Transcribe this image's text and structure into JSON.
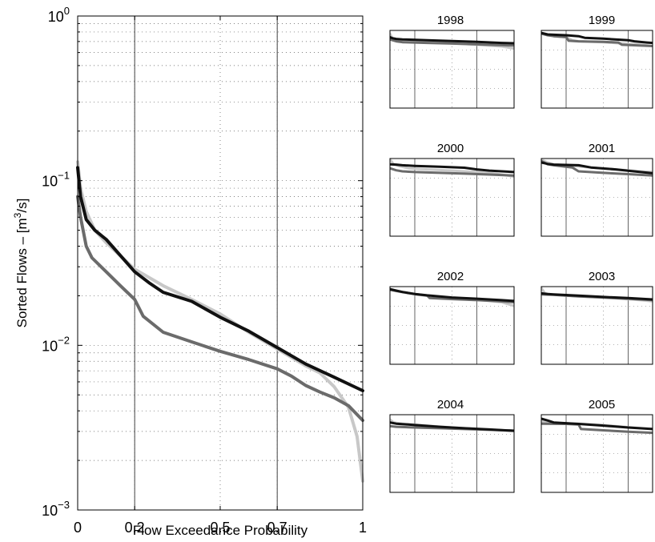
{
  "chart_data": [
    {
      "type": "line",
      "panel": "main",
      "title": "",
      "xlabel": "Flow Exceedance Probability",
      "ylabel_parts": [
        "Sorted Flows – [m",
        "3",
        "/s]"
      ],
      "xlim": [
        0,
        1
      ],
      "ylim": [
        0.001,
        1
      ],
      "yscale": "log",
      "x_ticks": [
        0,
        0.2,
        0.5,
        0.7,
        1
      ],
      "x_tick_labels": [
        "0",
        "0.2",
        "0.5",
        "0.7",
        "1"
      ],
      "y_ticks": [
        0.001,
        0.01,
        0.1,
        1
      ],
      "y_tick_labels": [
        {
          "base": "10",
          "exp": "−3"
        },
        {
          "base": "10",
          "exp": "−2"
        },
        {
          "base": "10",
          "exp": "−1"
        },
        {
          "base": "10",
          "exp": "0"
        }
      ],
      "grid": "dotted",
      "emphasized_x_lines": [
        0.2,
        0.7
      ],
      "series": [
        {
          "color": "#c8c8c8",
          "x": [
            0,
            0.01,
            0.03,
            0.06,
            0.1,
            0.2,
            0.3,
            0.4,
            0.5,
            0.6,
            0.7,
            0.8,
            0.85,
            0.9,
            0.95,
            0.98,
            1.0
          ],
          "y": [
            0.13,
            0.09,
            0.065,
            0.05,
            0.042,
            0.029,
            0.023,
            0.019,
            0.0155,
            0.012,
            0.0095,
            0.0075,
            0.0068,
            0.0056,
            0.0042,
            0.0028,
            0.0015
          ]
        },
        {
          "color": "#6b6b6b",
          "x": [
            0,
            0.01,
            0.03,
            0.05,
            0.1,
            0.15,
            0.2,
            0.23,
            0.3,
            0.4,
            0.5,
            0.6,
            0.7,
            0.75,
            0.8,
            0.85,
            0.9,
            0.95,
            1.0
          ],
          "y": [
            0.08,
            0.06,
            0.04,
            0.034,
            0.028,
            0.023,
            0.019,
            0.015,
            0.012,
            0.0105,
            0.0092,
            0.0082,
            0.0072,
            0.0065,
            0.0057,
            0.0052,
            0.0048,
            0.0043,
            0.0035
          ]
        },
        {
          "color": "#111111",
          "x": [
            0,
            0.01,
            0.03,
            0.06,
            0.1,
            0.2,
            0.25,
            0.3,
            0.4,
            0.5,
            0.6,
            0.7,
            0.8,
            0.9,
            1.0
          ],
          "y": [
            0.12,
            0.08,
            0.058,
            0.05,
            0.044,
            0.028,
            0.024,
            0.021,
            0.0185,
            0.0148,
            0.0122,
            0.0097,
            0.0077,
            0.0064,
            0.0053
          ]
        }
      ]
    },
    {
      "type": "line",
      "panel": "small",
      "title": "1998",
      "xlim": [
        0,
        1
      ],
      "yscale": "log",
      "ylim": [
        0.001,
        1
      ],
      "series": [
        {
          "color": "#c8c8c8",
          "x": [
            0,
            0.02,
            0.05,
            0.1,
            0.3,
            0.5,
            0.7,
            0.9,
            1.0
          ],
          "y": [
            0.75,
            0.5,
            0.45,
            0.4,
            0.36,
            0.32,
            0.28,
            0.24,
            0.2
          ]
        },
        {
          "color": "#6b6b6b",
          "x": [
            0,
            0.02,
            0.05,
            0.1,
            0.3,
            0.5,
            0.7,
            0.9,
            1.0
          ],
          "y": [
            0.45,
            0.42,
            0.38,
            0.35,
            0.33,
            0.31,
            0.29,
            0.27,
            0.26
          ]
        },
        {
          "color": "#111111",
          "x": [
            0,
            0.02,
            0.05,
            0.1,
            0.3,
            0.5,
            0.7,
            0.9,
            1.0
          ],
          "y": [
            0.55,
            0.5,
            0.47,
            0.45,
            0.42,
            0.39,
            0.36,
            0.33,
            0.32
          ]
        }
      ]
    },
    {
      "type": "line",
      "panel": "small",
      "title": "1999",
      "xlim": [
        0,
        1
      ],
      "yscale": "log",
      "ylim": [
        0.001,
        1
      ],
      "series": [
        {
          "color": "#c8c8c8",
          "x": [
            0,
            0.05,
            0.1,
            0.2,
            0.25,
            0.3,
            0.5,
            0.7,
            0.8,
            0.9,
            1.0
          ],
          "y": [
            0.8,
            0.7,
            0.6,
            0.55,
            0.42,
            0.38,
            0.35,
            0.3,
            0.28,
            0.25,
            0.18
          ]
        },
        {
          "color": "#6b6b6b",
          "x": [
            0,
            0.05,
            0.1,
            0.2,
            0.22,
            0.3,
            0.5,
            0.62,
            0.65,
            0.8,
            0.9,
            1.0
          ],
          "y": [
            0.75,
            0.65,
            0.6,
            0.55,
            0.4,
            0.38,
            0.36,
            0.34,
            0.28,
            0.26,
            0.25,
            0.24
          ]
        },
        {
          "color": "#111111",
          "x": [
            0,
            0.05,
            0.1,
            0.2,
            0.3,
            0.35,
            0.5,
            0.7,
            0.75,
            0.85,
            1.0
          ],
          "y": [
            0.8,
            0.7,
            0.68,
            0.65,
            0.6,
            0.52,
            0.48,
            0.42,
            0.38,
            0.34,
            0.3
          ]
        }
      ]
    },
    {
      "type": "line",
      "panel": "small",
      "title": "2000",
      "xlim": [
        0,
        1
      ],
      "yscale": "log",
      "ylim": [
        0.001,
        1
      ],
      "series": [
        {
          "color": "#c8c8c8",
          "x": [
            0,
            0.03,
            0.08,
            0.15,
            0.3,
            0.5,
            0.7,
            0.85,
            1.0
          ],
          "y": [
            0.95,
            0.6,
            0.5,
            0.42,
            0.38,
            0.34,
            0.3,
            0.26,
            0.2
          ]
        },
        {
          "color": "#6b6b6b",
          "x": [
            0,
            0.05,
            0.1,
            0.2,
            0.4,
            0.6,
            0.8,
            1.0
          ],
          "y": [
            0.42,
            0.35,
            0.32,
            0.3,
            0.28,
            0.26,
            0.24,
            0.22
          ]
        },
        {
          "color": "#111111",
          "x": [
            0,
            0.05,
            0.1,
            0.2,
            0.4,
            0.6,
            0.7,
            0.8,
            1.0
          ],
          "y": [
            0.6,
            0.58,
            0.55,
            0.52,
            0.48,
            0.44,
            0.38,
            0.34,
            0.3
          ]
        }
      ]
    },
    {
      "type": "line",
      "panel": "small",
      "title": "2001",
      "xlim": [
        0,
        1
      ],
      "yscale": "log",
      "ylim": [
        0.001,
        1
      ],
      "series": [
        {
          "color": "#c8c8c8",
          "x": [
            0,
            0.05,
            0.1,
            0.2,
            0.4,
            0.6,
            0.8,
            0.9,
            1.0
          ],
          "y": [
            0.9,
            0.7,
            0.6,
            0.55,
            0.45,
            0.38,
            0.32,
            0.3,
            0.26
          ]
        },
        {
          "color": "#6b6b6b",
          "x": [
            0,
            0.05,
            0.1,
            0.25,
            0.3,
            0.5,
            0.7,
            0.9,
            1.0
          ],
          "y": [
            0.8,
            0.6,
            0.55,
            0.45,
            0.32,
            0.28,
            0.25,
            0.22,
            0.2
          ]
        },
        {
          "color": "#111111",
          "x": [
            0,
            0.05,
            0.1,
            0.3,
            0.4,
            0.6,
            0.8,
            0.9,
            1.0
          ],
          "y": [
            0.7,
            0.62,
            0.58,
            0.55,
            0.45,
            0.38,
            0.3,
            0.27,
            0.24
          ]
        }
      ]
    },
    {
      "type": "line",
      "panel": "small",
      "title": "2002",
      "xlim": [
        0,
        1
      ],
      "yscale": "log",
      "ylim": [
        0.001,
        1
      ],
      "series": [
        {
          "color": "#c8c8c8",
          "x": [
            0,
            0.1,
            0.2,
            0.4,
            0.6,
            0.8,
            0.9,
            1.0
          ],
          "y": [
            0.75,
            0.6,
            0.5,
            0.4,
            0.34,
            0.28,
            0.25,
            0.18
          ]
        },
        {
          "color": "#6b6b6b",
          "x": [
            0,
            0.1,
            0.2,
            0.3,
            0.32,
            0.5,
            0.7,
            0.9,
            1.0
          ],
          "y": [
            0.75,
            0.62,
            0.52,
            0.45,
            0.36,
            0.33,
            0.3,
            0.27,
            0.25
          ]
        },
        {
          "color": "#111111",
          "x": [
            0,
            0.05,
            0.1,
            0.2,
            0.3,
            0.5,
            0.7,
            0.9,
            1.0
          ],
          "y": [
            0.8,
            0.7,
            0.62,
            0.52,
            0.46,
            0.38,
            0.34,
            0.3,
            0.28
          ]
        }
      ]
    },
    {
      "type": "line",
      "panel": "small",
      "title": "2003",
      "xlim": [
        0,
        1
      ],
      "yscale": "log",
      "ylim": [
        0.001,
        1
      ],
      "series": [
        {
          "color": "#c8c8c8",
          "x": [
            0,
            0.03,
            0.08,
            0.2,
            0.4,
            0.6,
            0.8,
            0.9,
            1.0
          ],
          "y": [
            0.9,
            0.55,
            0.5,
            0.45,
            0.4,
            0.35,
            0.3,
            0.27,
            0.22
          ]
        },
        {
          "color": "#6b6b6b",
          "x": [
            0,
            0.1,
            0.3,
            0.5,
            0.7,
            0.9,
            1.0
          ],
          "y": [
            0.5,
            0.48,
            0.42,
            0.38,
            0.34,
            0.3,
            0.28
          ]
        },
        {
          "color": "#111111",
          "x": [
            0,
            0.05,
            0.1,
            0.3,
            0.5,
            0.7,
            0.9,
            1.0
          ],
          "y": [
            0.55,
            0.52,
            0.5,
            0.45,
            0.4,
            0.36,
            0.32,
            0.3
          ]
        }
      ]
    },
    {
      "type": "line",
      "panel": "small",
      "title": "2004",
      "xlim": [
        0,
        1
      ],
      "yscale": "log",
      "ylim": [
        0.001,
        1
      ],
      "series": [
        {
          "color": "#c8c8c8",
          "x": [
            0,
            0.03,
            0.1,
            0.3,
            0.5,
            0.7,
            0.9,
            1.0
          ],
          "y": [
            0.65,
            0.5,
            0.45,
            0.38,
            0.32,
            0.28,
            0.25,
            0.23
          ]
        },
        {
          "color": "#6b6b6b",
          "x": [
            0,
            0.05,
            0.2,
            0.4,
            0.6,
            0.8,
            1.0
          ],
          "y": [
            0.36,
            0.34,
            0.32,
            0.3,
            0.28,
            0.26,
            0.24
          ]
        },
        {
          "color": "#111111",
          "x": [
            0,
            0.05,
            0.2,
            0.4,
            0.6,
            0.8,
            1.0
          ],
          "y": [
            0.5,
            0.45,
            0.4,
            0.34,
            0.3,
            0.27,
            0.24
          ]
        }
      ]
    },
    {
      "type": "line",
      "panel": "small",
      "title": "2005",
      "xlim": [
        0,
        1
      ],
      "yscale": "log",
      "ylim": [
        0.001,
        1
      ],
      "series": [
        {
          "color": "#c8c8c8",
          "x": [
            0,
            0.05,
            0.1,
            0.3,
            0.5,
            0.7,
            0.9,
            1.0
          ],
          "y": [
            0.55,
            0.5,
            0.46,
            0.45,
            0.4,
            0.33,
            0.28,
            0.26
          ]
        },
        {
          "color": "#6b6b6b",
          "x": [
            0,
            0.2,
            0.3,
            0.32,
            0.5,
            0.7,
            0.9,
            1.0
          ],
          "y": [
            0.45,
            0.44,
            0.42,
            0.28,
            0.25,
            0.22,
            0.2,
            0.19
          ]
        },
        {
          "color": "#111111",
          "x": [
            0,
            0.05,
            0.1,
            0.3,
            0.5,
            0.7,
            0.9,
            1.0
          ],
          "y": [
            0.7,
            0.6,
            0.5,
            0.44,
            0.38,
            0.32,
            0.28,
            0.26
          ]
        }
      ]
    }
  ]
}
